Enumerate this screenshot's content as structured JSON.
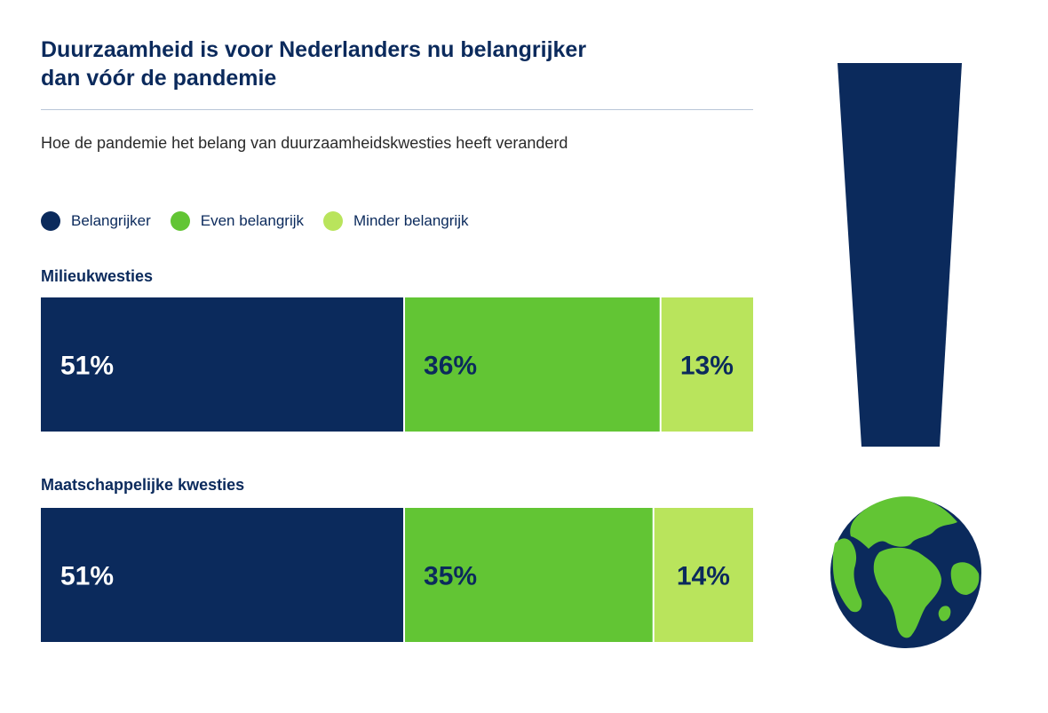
{
  "header": {
    "title_line1": "Duurzaamheid is voor Nederlanders nu belangrijker",
    "title_line2": "dan vóór de pandemie",
    "subtitle": "Hoe de pandemie het belang van duurzaamheidskwesties heeft veranderd"
  },
  "colors": {
    "navy": "#0b2a5c",
    "green": "#62c534",
    "light_green": "#b9e45c"
  },
  "chart_data": {
    "type": "bar",
    "orientation": "horizontal",
    "stacked": true,
    "title": "Duurzaamheid is voor Nederlanders nu belangrijker dan vóór de pandemie",
    "subtitle": "Hoe de pandemie het belang van duurzaamheidskwesties heeft veranderd",
    "unit": "%",
    "legend_position": "top-left",
    "series": [
      {
        "name": "Belangrijker",
        "color": "#0b2a5c",
        "label_color": "#ffffff"
      },
      {
        "name": "Even belangrijk",
        "color": "#62c534",
        "label_color": "#0b2a5c"
      },
      {
        "name": "Minder belangrijk",
        "color": "#b9e45c",
        "label_color": "#0b2a5c"
      }
    ],
    "categories": [
      "Milieukwesties",
      "Maatschappelijke kwesties"
    ],
    "values": [
      [
        51,
        36,
        13
      ],
      [
        51,
        35,
        14
      ]
    ],
    "labels": [
      [
        "51%",
        "36%",
        "13%"
      ],
      [
        "51%",
        "35%",
        "14%"
      ]
    ]
  },
  "decoration": {
    "exclamation_icon": "exclamation-mark-icon",
    "globe_icon": "globe-icon"
  }
}
